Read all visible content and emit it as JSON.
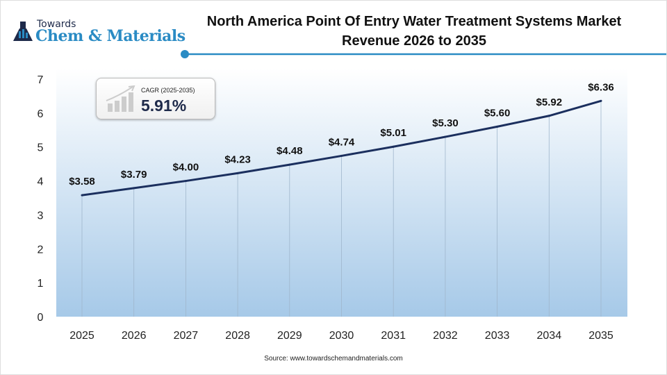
{
  "brand": {
    "line1": "Towards",
    "line2": "Chem & Materials"
  },
  "cagr": {
    "label": "CAGR (2025-2035)",
    "value": "5.91%"
  },
  "source": "Source: www.towardschemandmaterials.com",
  "colors": {
    "line": "#1b2f5e",
    "accent": "#2a8bc4",
    "fill_bottom": "#a6c9e8"
  },
  "chart_data": {
    "type": "line",
    "title": "North America Point Of Entry Water Treatment Systems Market Revenue 2026 to 2035",
    "categories": [
      "2025",
      "2026",
      "2027",
      "2028",
      "2029",
      "2030",
      "2031",
      "2032",
      "2033",
      "2034",
      "2035"
    ],
    "values": [
      3.58,
      3.79,
      4.0,
      4.23,
      4.48,
      4.74,
      5.01,
      5.3,
      5.6,
      5.92,
      6.36
    ],
    "data_labels": [
      "$3.58",
      "$3.79",
      "$4.00",
      "$4.23",
      "$4.48",
      "$4.74",
      "$5.01",
      "$5.30",
      "$5.60",
      "$5.92",
      "$6.36"
    ],
    "yticks": [
      0,
      1,
      2,
      3,
      4,
      5,
      6,
      7
    ],
    "ylim": [
      0,
      7
    ],
    "grid": "vertical",
    "xlabel": "",
    "ylabel": ""
  }
}
